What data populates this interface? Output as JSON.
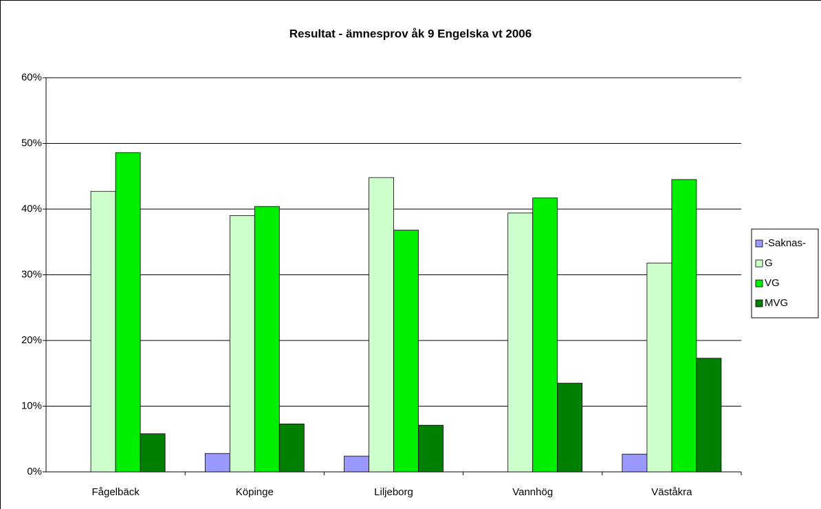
{
  "chart_data": {
    "type": "bar",
    "title": "Resultat - ämnesprov åk 9 Engelska vt 2006",
    "categories": [
      "Fågelbäck",
      "Köpinge",
      "Liljeborg",
      "Vannhög",
      "Väståkra"
    ],
    "series": [
      {
        "name": "-Saknas-",
        "color": "#9999ff",
        "values": [
          0,
          2.8,
          2.4,
          0,
          2.7
        ]
      },
      {
        "name": "G",
        "color": "#ccffcc",
        "values": [
          42.7,
          39.0,
          44.8,
          39.4,
          31.8
        ]
      },
      {
        "name": "VG",
        "color": "#00ee00",
        "values": [
          48.6,
          40.4,
          36.8,
          41.7,
          44.5
        ]
      },
      {
        "name": "MVG",
        "color": "#008000",
        "values": [
          5.8,
          7.3,
          7.1,
          13.5,
          17.3
        ]
      }
    ],
    "ylim": [
      0,
      60
    ],
    "yticks": [
      {
        "value": 0,
        "label": "0%"
      },
      {
        "value": 10,
        "label": "10%"
      },
      {
        "value": 20,
        "label": "20%"
      },
      {
        "value": 30,
        "label": "30%"
      },
      {
        "value": 40,
        "label": "40%"
      },
      {
        "value": 50,
        "label": "50%"
      },
      {
        "value": 60,
        "label": "60%"
      }
    ],
    "grid": true,
    "legend": "right"
  }
}
